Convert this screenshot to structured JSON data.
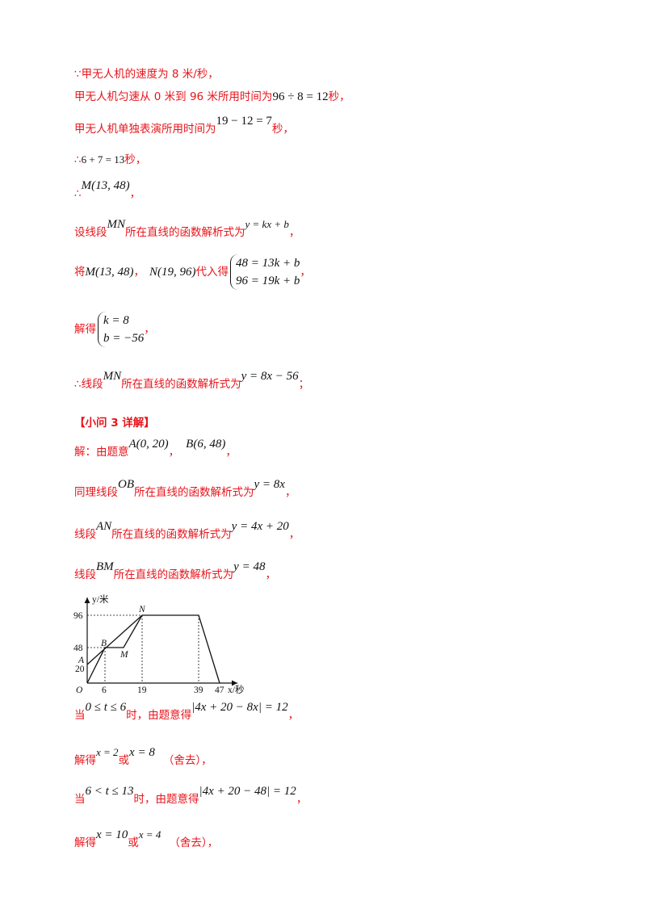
{
  "lines": {
    "l1": "∵甲无人机的速度为 8 米/秒，",
    "l2a": "甲无人机匀速从 0 米到 96 米所用时间为",
    "l2m": "96 ÷ 8 = 12",
    "l2b": "秒，",
    "l3a": "甲无人机单独表演所用时间为",
    "l3m": "19 − 12 = 7",
    "l3b": "秒，",
    "l4a": "∴",
    "l4m": "6 + 7 = 13",
    "l4b": "秒，",
    "l5a": "∴",
    "l5m": "M(13, 48)",
    "l5b": "，",
    "l6a": "设线段",
    "l6m1": "MN",
    "l6b": "所在直线的函数解析式为",
    "l6m2": "y = kx + b",
    "l6c": "，",
    "l7a": "将",
    "l7m1": "M(13, 48)",
    "l7b": "，",
    "l7m2": "N(19, 96)",
    "l7c": "代入得",
    "l7s1": "48 = 13k + b",
    "l7s2": "96 = 19k + b",
    "l7d": "，",
    "l8a": "解得",
    "l8s1": "k = 8",
    "l8s2": "b = −56",
    "l8b": "，",
    "l9a": "∴线段",
    "l9m1": "MN",
    "l9b": "所在直线的函数解析式为",
    "l9m2": "y = 8x − 56",
    "l9c": "；",
    "l10": "【小问 3 详解】",
    "l11a": "解：由题意",
    "l11m1": "A(0, 20)",
    "l11b": "，",
    "l11m2": "B(6, 48)",
    "l11c": "，",
    "l12a": "同理线段",
    "l12m1": "OB",
    "l12b": "所在直线的函数解析式为",
    "l12m2": "y = 8x",
    "l12c": "，",
    "l13a": "线段",
    "l13m1": "AN",
    "l13b": "所在直线的函数解析式为",
    "l13m2": "y = 4x + 20",
    "l13c": "，",
    "l14a": "线段",
    "l14m1": "BM",
    "l14b": "所在直线的函数解析式为",
    "l14m2": "y = 48",
    "l14c": "，",
    "l15a": "当",
    "l15m1": "0 ≤ t ≤ 6",
    "l15b": "时，由题意得",
    "l15m2": "|4x + 20 − 8x| = 12",
    "l15c": "，",
    "l16a": "解得",
    "l16m1": "x = 2",
    "l16b": "或",
    "l16m2": "x = 8",
    "l16c": "（舍去），",
    "l17a": "当",
    "l17m1": "6 < t ≤ 13",
    "l17b": "时，由题意得",
    "l17m2": "|4x + 20 − 48| = 12",
    "l17c": "，",
    "l18a": "解得",
    "l18m1": "x = 10",
    "l18b": "或",
    "l18m2": "x = 4",
    "l18c": "（舍去），"
  },
  "graph": {
    "y_axis_label": "y/米",
    "x_axis_label": "x/秒",
    "origin": "O",
    "x_ticks": [
      "6",
      "19",
      "39",
      "47"
    ],
    "y_ticks": [
      "96",
      "48",
      "20"
    ],
    "points": {
      "A": "A",
      "B": "B",
      "M": "M",
      "N": "N"
    }
  }
}
